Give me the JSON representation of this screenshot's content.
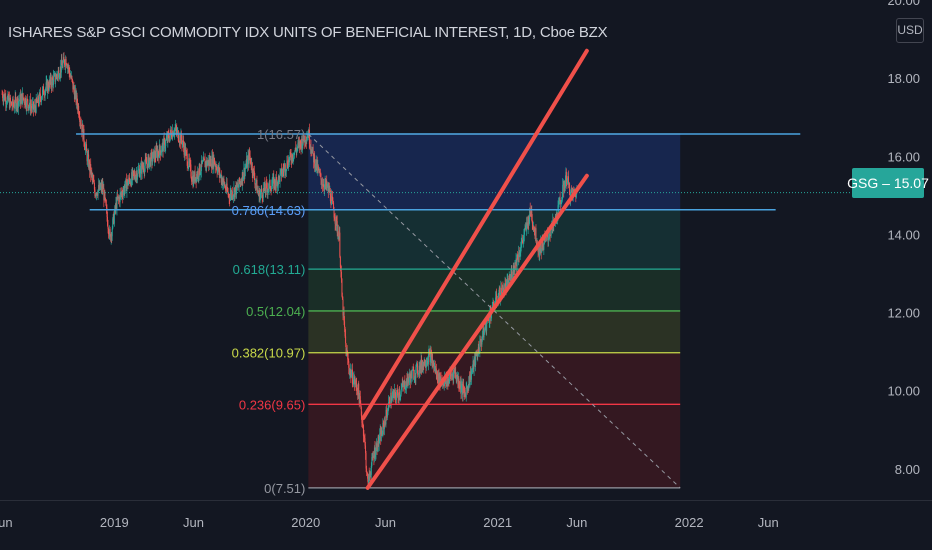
{
  "title": "ISHARES S&P GSCI COMMODITY IDX UNITS OF BENEFICIAL INTEREST, 1D, Cboe BZX",
  "currency_label": "USD",
  "price_tag": {
    "text": "GSG – 15.07",
    "value": 15.07
  },
  "colors": {
    "background": "#131722",
    "axis_text": "#b2b5be",
    "trend_channel": "#f0504a",
    "horizontal_levels": "#4aa3df",
    "price_tag": "#26a69a",
    "candle_up": "#26a69a",
    "candle_down": "#ef5350"
  },
  "chart_data": {
    "type": "line",
    "y_axis": {
      "ticks": [
        8,
        10,
        12,
        14,
        16,
        18,
        20
      ],
      "tick_labels": [
        "8.00",
        "10.00",
        "12.00",
        "14.00",
        "16.00",
        "18.00",
        "20.00"
      ],
      "range": [
        7.2,
        20.0
      ]
    },
    "x_axis": {
      "range": [
        "2018-05-28",
        "2022-12-31"
      ],
      "ticks": [
        {
          "label": "Jun",
          "date": "2018-06-01"
        },
        {
          "label": "2019",
          "date": "2019-01-01"
        },
        {
          "label": "Jun",
          "date": "2019-06-01"
        },
        {
          "label": "2020",
          "date": "2020-01-01"
        },
        {
          "label": "Jun",
          "date": "2020-06-01"
        },
        {
          "label": "2021",
          "date": "2021-01-01"
        },
        {
          "label": "Jun",
          "date": "2021-06-01"
        },
        {
          "label": "2022",
          "date": "2022-01-01"
        },
        {
          "label": "Jun",
          "date": "2022-06-01"
        }
      ]
    },
    "price_series": [
      [
        "2018-06-01",
        17.6
      ],
      [
        "2018-06-20",
        17.3
      ],
      [
        "2018-07-10",
        17.5
      ],
      [
        "2018-08-01",
        17.2
      ],
      [
        "2018-08-20",
        17.7
      ],
      [
        "2018-09-10",
        18.0
      ],
      [
        "2018-10-01",
        18.5
      ],
      [
        "2018-10-12",
        17.9
      ],
      [
        "2018-10-25",
        17.2
      ],
      [
        "2018-11-10",
        16.0
      ],
      [
        "2018-11-25",
        15.1
      ],
      [
        "2018-12-10",
        15.2
      ],
      [
        "2018-12-24",
        13.9
      ],
      [
        "2019-01-05",
        14.8
      ],
      [
        "2019-01-25",
        15.3
      ],
      [
        "2019-02-15",
        15.6
      ],
      [
        "2019-03-10",
        15.9
      ],
      [
        "2019-04-01",
        16.2
      ],
      [
        "2019-04-25",
        16.7
      ],
      [
        "2019-05-10",
        16.4
      ],
      [
        "2019-05-31",
        15.4
      ],
      [
        "2019-06-20",
        15.8
      ],
      [
        "2019-07-10",
        15.9
      ],
      [
        "2019-08-07",
        15.0
      ],
      [
        "2019-08-25",
        15.2
      ],
      [
        "2019-09-16",
        16.0
      ],
      [
        "2019-10-03",
        15.0
      ],
      [
        "2019-10-20",
        15.2
      ],
      [
        "2019-11-10",
        15.4
      ],
      [
        "2019-11-25",
        15.8
      ],
      [
        "2019-12-15",
        16.2
      ],
      [
        "2020-01-06",
        16.6
      ],
      [
        "2020-01-15",
        16.0
      ],
      [
        "2020-01-30",
        15.4
      ],
      [
        "2020-02-15",
        15.1
      ],
      [
        "2020-02-25",
        14.5
      ],
      [
        "2020-03-05",
        13.9
      ],
      [
        "2020-03-10",
        12.4
      ],
      [
        "2020-03-18",
        11.0
      ],
      [
        "2020-03-25",
        10.5
      ],
      [
        "2020-04-10",
        10.0
      ],
      [
        "2020-04-21",
        8.9
      ],
      [
        "2020-04-28",
        7.6
      ],
      [
        "2020-05-10",
        8.4
      ],
      [
        "2020-05-25",
        8.9
      ],
      [
        "2020-06-10",
        9.8
      ],
      [
        "2020-06-25",
        9.9
      ],
      [
        "2020-07-15",
        10.3
      ],
      [
        "2020-08-05",
        10.6
      ],
      [
        "2020-08-25",
        10.9
      ],
      [
        "2020-09-10",
        10.3
      ],
      [
        "2020-09-25",
        10.2
      ],
      [
        "2020-10-10",
        10.5
      ],
      [
        "2020-10-30",
        9.9
      ],
      [
        "2020-11-15",
        10.6
      ],
      [
        "2020-12-01",
        11.3
      ],
      [
        "2020-12-15",
        11.9
      ],
      [
        "2021-01-05",
        12.5
      ],
      [
        "2021-01-20",
        12.7
      ],
      [
        "2021-02-10",
        13.5
      ],
      [
        "2021-02-25",
        14.2
      ],
      [
        "2021-03-05",
        14.6
      ],
      [
        "2021-03-20",
        13.6
      ],
      [
        "2021-04-05",
        13.9
      ],
      [
        "2021-04-20",
        14.3
      ],
      [
        "2021-05-05",
        15.1
      ],
      [
        "2021-05-12",
        15.5
      ],
      [
        "2021-05-20",
        15.0
      ],
      [
        "2021-06-01",
        15.07
      ]
    ],
    "fibonacci_retracement": {
      "start": [
        "2020-01-06",
        16.57
      ],
      "end": [
        "2020-04-28",
        7.51
      ],
      "extend_to": "2021-12-15",
      "levels": [
        {
          "ratio": 1,
          "price": 16.57,
          "label": "1(16.57)",
          "color": "#787b86",
          "fill": "#b2b5be"
        },
        {
          "ratio": 0.786,
          "price": 14.63,
          "label": "0.786(14.63)",
          "color": "#5b9cf6",
          "fill": "#2962ff"
        },
        {
          "ratio": 0.618,
          "price": 13.11,
          "label": "0.618(13.11)",
          "color": "#22ab94",
          "fill": "#1f8f7a"
        },
        {
          "ratio": 0.5,
          "price": 12.04,
          "label": "0.5(12.04)",
          "color": "#4caf50",
          "fill": "#388e3c"
        },
        {
          "ratio": 0.382,
          "price": 10.97,
          "label": "0.382(10.97)",
          "color": "#c9d94a",
          "fill": "#8ea12c"
        },
        {
          "ratio": 0.236,
          "price": 9.65,
          "label": "0.236(9.65)",
          "color": "#f23645",
          "fill": "#b71c1c"
        },
        {
          "ratio": 0,
          "price": 7.51,
          "label": "0(7.51)",
          "color": "#9598a1",
          "fill": null
        }
      ]
    },
    "horizontal_lines": [
      {
        "price": 16.57,
        "from": "2018-10-20",
        "to": "2022-08-01"
      },
      {
        "price": 14.63,
        "from": "2018-11-15",
        "to": "2022-06-15"
      }
    ],
    "trend_channel": [
      {
        "from": [
          "2020-04-28",
          7.51
        ],
        "to": [
          "2021-06-20",
          15.5
        ]
      },
      {
        "from": [
          "2020-04-20",
          9.3
        ],
        "to": [
          "2021-06-20",
          18.7
        ]
      }
    ],
    "last_price": 15.07
  }
}
